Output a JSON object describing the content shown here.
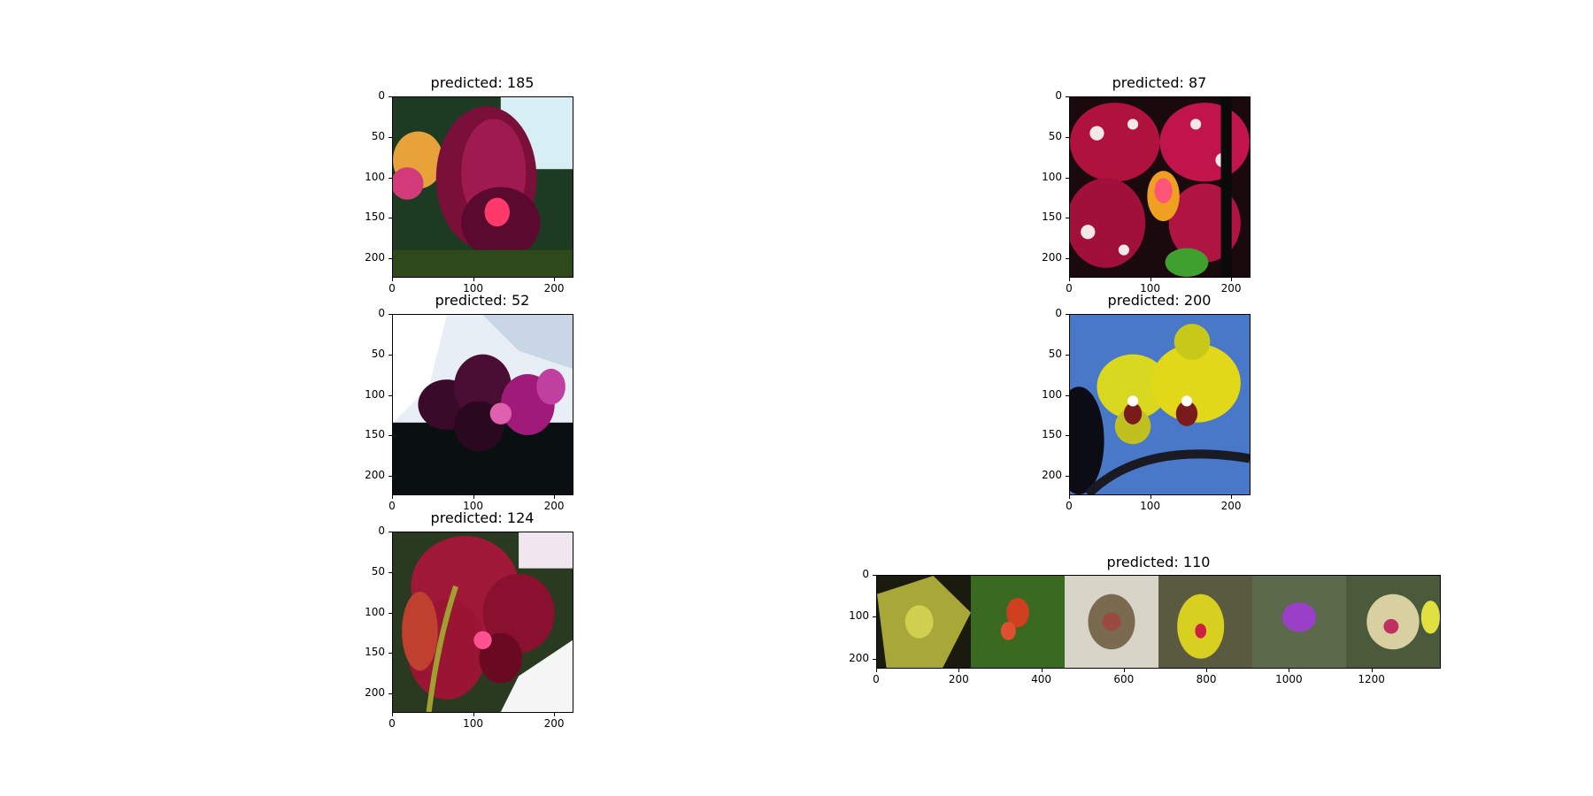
{
  "panels": [
    {
      "title": "predicted: 185",
      "image": "purple-magenta-orchid-photo",
      "yticks": [
        "0",
        "50",
        "100",
        "150",
        "200"
      ],
      "xticks": [
        "0",
        "100",
        "200"
      ]
    },
    {
      "title": "predicted: 87",
      "image": "spotted-magenta-orchid-photo",
      "yticks": [
        "0",
        "50",
        "100",
        "150",
        "200"
      ],
      "xticks": [
        "0",
        "100",
        "200"
      ]
    },
    {
      "title": "predicted: 52",
      "image": "dark-purple-orchid-photo",
      "yticks": [
        "0",
        "50",
        "100",
        "150",
        "200"
      ],
      "xticks": [
        "0",
        "100",
        "200"
      ]
    },
    {
      "title": "predicted: 200",
      "image": "yellow-orchid-blue-background-photo",
      "yticks": [
        "0",
        "50",
        "100",
        "150",
        "200"
      ],
      "xticks": [
        "0",
        "100",
        "200"
      ]
    },
    {
      "title": "predicted: 124",
      "image": "red-orchid-closeup-photo",
      "yticks": [
        "0",
        "50",
        "100",
        "150",
        "200"
      ],
      "xticks": [
        "0",
        "100",
        "200"
      ]
    },
    {
      "title": "predicted: 110",
      "image": "orchid-strip-six-photos",
      "yticks": [
        "0",
        "100",
        "200"
      ],
      "xticks": [
        "0",
        "200",
        "400",
        "600",
        "800",
        "1000",
        "1200"
      ]
    }
  ]
}
